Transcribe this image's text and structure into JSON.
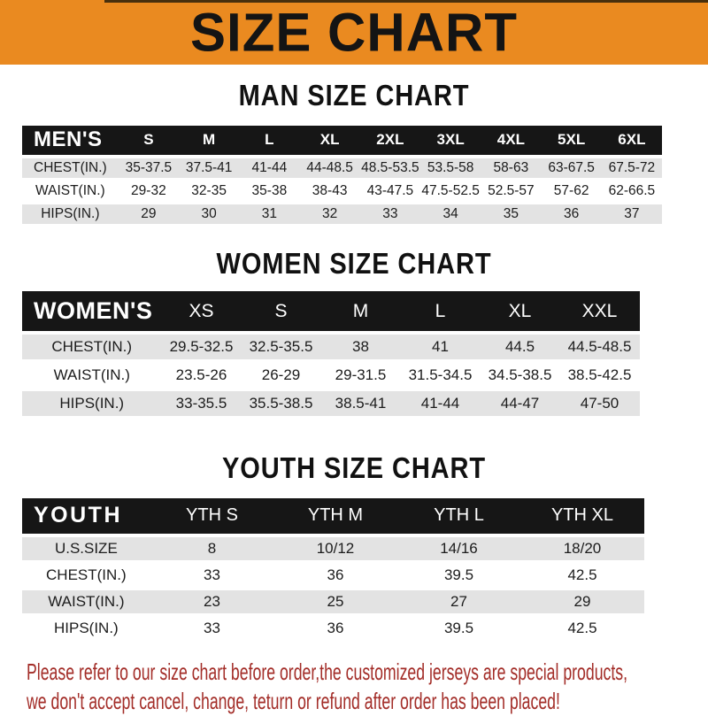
{
  "title": "SIZE CHART",
  "colors": {
    "header_bg": "#EA8A20",
    "bar_bg": "#161616",
    "row_gray": "#E3E3E3",
    "note_red": "#A32D28"
  },
  "men": {
    "heading": "MAN SIZE CHART",
    "header": [
      "MEN'S",
      "S",
      "M",
      "L",
      "XL",
      "2XL",
      "3XL",
      "4XL",
      "5XL",
      "6XL"
    ],
    "rows": [
      [
        "CHEST(IN.)",
        "35-37.5",
        "37.5-41",
        "41-44",
        "44-48.5",
        "48.5-53.5",
        "53.5-58",
        "58-63",
        "63-67.5",
        "67.5-72"
      ],
      [
        "WAIST(IN.)",
        "29-32",
        "32-35",
        "35-38",
        "38-43",
        "43-47.5",
        "47.5-52.5",
        "52.5-57",
        "57-62",
        "62-66.5"
      ],
      [
        "HIPS(IN.)",
        "29",
        "30",
        "31",
        "32",
        "33",
        "34",
        "35",
        "36",
        "37"
      ]
    ]
  },
  "women": {
    "heading": "WOMEN SIZE CHART",
    "header": [
      "WOMEN'S",
      "XS",
      "S",
      "M",
      "L",
      "XL",
      "XXL"
    ],
    "rows": [
      [
        "CHEST(IN.)",
        "29.5-32.5",
        "32.5-35.5",
        "38",
        "41",
        "44.5",
        "44.5-48.5"
      ],
      [
        "WAIST(IN.)",
        "23.5-26",
        "26-29",
        "29-31.5",
        "31.5-34.5",
        "34.5-38.5",
        "38.5-42.5"
      ],
      [
        "HIPS(IN.)",
        "33-35.5",
        "35.5-38.5",
        "38.5-41",
        "41-44",
        "44-47",
        "47-50"
      ]
    ]
  },
  "youth": {
    "heading": "YOUTH SIZE CHART",
    "header": [
      "YOUTH",
      "YTH S",
      "YTH M",
      "YTH L",
      "YTH XL"
    ],
    "rows": [
      [
        "U.S.SIZE",
        "8",
        "10/12",
        "14/16",
        "18/20"
      ],
      [
        "CHEST(IN.)",
        "33",
        "36",
        "39.5",
        "42.5"
      ],
      [
        "WAIST(IN.)",
        "23",
        "25",
        "27",
        "29"
      ],
      [
        "HIPS(IN.)",
        "33",
        "36",
        "39.5",
        "42.5"
      ]
    ]
  },
  "footer": {
    "line1": "Please refer to our size chart before order,the customized jerseys are special products,",
    "line2": "we don't accept cancel, change, teturn or refund after order has been placed!"
  }
}
